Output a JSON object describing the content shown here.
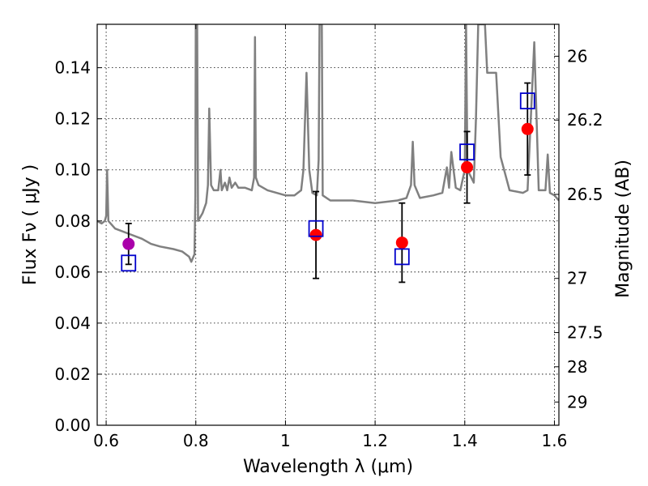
{
  "chart_data": {
    "type": "scatter",
    "title": "",
    "xlabel": "Wavelength  λ (μm)",
    "ylabel": "Flux  Fν  ( μJy )",
    "ylabel_right": "Magnitude (AB)",
    "xlim": [
      0.58,
      1.61
    ],
    "ylim": [
      0.0,
      0.157
    ],
    "grid": true,
    "x_ticks": [
      0.6,
      0.8,
      1.0,
      1.2,
      1.4,
      1.6
    ],
    "x_tick_labels": [
      "0.6",
      "0.8",
      "1",
      "1.2",
      "1.4",
      "1.6"
    ],
    "y_ticks": [
      0.0,
      0.02,
      0.04,
      0.06,
      0.08,
      0.1,
      0.12,
      0.14
    ],
    "y_tick_labels": [
      "0.00",
      "0.02",
      "0.04",
      "0.06",
      "0.08",
      "0.10",
      "0.12",
      "0.14"
    ],
    "mag_ticks": [
      {
        "label": "26",
        "flux": 0.1445
      },
      {
        "label": "26.2",
        "flux": 0.1195
      },
      {
        "label": "26.5",
        "flux": 0.0904
      },
      {
        "label": "27",
        "flux": 0.0575
      },
      {
        "label": "27.5",
        "flux": 0.0363
      },
      {
        "label": "28",
        "flux": 0.0229
      },
      {
        "label": "29",
        "flux": 0.0091
      }
    ],
    "model_spectrum": {
      "color": "#808080",
      "points": [
        [
          0.58,
          0.08
        ],
        [
          0.59,
          0.079
        ],
        [
          0.597,
          0.08
        ],
        [
          0.6,
          0.082
        ],
        [
          0.602,
          0.1
        ],
        [
          0.605,
          0.08
        ],
        [
          0.62,
          0.077
        ],
        [
          0.65,
          0.075
        ],
        [
          0.68,
          0.073
        ],
        [
          0.7,
          0.071
        ],
        [
          0.72,
          0.07
        ],
        [
          0.75,
          0.069
        ],
        [
          0.77,
          0.068
        ],
        [
          0.785,
          0.066
        ],
        [
          0.79,
          0.064
        ],
        [
          0.797,
          0.067
        ],
        [
          0.799,
          0.09
        ],
        [
          0.8,
          0.157
        ],
        [
          0.803,
          0.157
        ],
        [
          0.805,
          0.08
        ],
        [
          0.815,
          0.083
        ],
        [
          0.823,
          0.087
        ],
        [
          0.827,
          0.094
        ],
        [
          0.83,
          0.124
        ],
        [
          0.834,
          0.094
        ],
        [
          0.84,
          0.092
        ],
        [
          0.85,
          0.092
        ],
        [
          0.855,
          0.1
        ],
        [
          0.858,
          0.092
        ],
        [
          0.865,
          0.095
        ],
        [
          0.87,
          0.092
        ],
        [
          0.875,
          0.097
        ],
        [
          0.88,
          0.093
        ],
        [
          0.888,
          0.095
        ],
        [
          0.895,
          0.093
        ],
        [
          0.91,
          0.093
        ],
        [
          0.925,
          0.092
        ],
        [
          0.93,
          0.097
        ],
        [
          0.932,
          0.152
        ],
        [
          0.934,
          0.097
        ],
        [
          0.94,
          0.094
        ],
        [
          0.96,
          0.092
        ],
        [
          0.98,
          0.091
        ],
        [
          1.0,
          0.09
        ],
        [
          1.02,
          0.09
        ],
        [
          1.035,
          0.092
        ],
        [
          1.04,
          0.1
        ],
        [
          1.047,
          0.138
        ],
        [
          1.053,
          0.1
        ],
        [
          1.06,
          0.091
        ],
        [
          1.07,
          0.09
        ],
        [
          1.074,
          0.104
        ],
        [
          1.076,
          0.157
        ],
        [
          1.081,
          0.157
        ],
        [
          1.083,
          0.09
        ],
        [
          1.1,
          0.088
        ],
        [
          1.15,
          0.088
        ],
        [
          1.2,
          0.087
        ],
        [
          1.25,
          0.088
        ],
        [
          1.27,
          0.089
        ],
        [
          1.28,
          0.094
        ],
        [
          1.284,
          0.111
        ],
        [
          1.288,
          0.094
        ],
        [
          1.3,
          0.089
        ],
        [
          1.33,
          0.09
        ],
        [
          1.35,
          0.091
        ],
        [
          1.36,
          0.101
        ],
        [
          1.365,
          0.093
        ],
        [
          1.37,
          0.107
        ],
        [
          1.38,
          0.093
        ],
        [
          1.39,
          0.092
        ],
        [
          1.4,
          0.1
        ],
        [
          1.403,
          0.157
        ],
        [
          1.406,
          0.1
        ],
        [
          1.42,
          0.095
        ],
        [
          1.425,
          0.12
        ],
        [
          1.43,
          0.157
        ],
        [
          1.445,
          0.157
        ],
        [
          1.45,
          0.138
        ],
        [
          1.47,
          0.138
        ],
        [
          1.48,
          0.105
        ],
        [
          1.5,
          0.092
        ],
        [
          1.53,
          0.091
        ],
        [
          1.54,
          0.092
        ],
        [
          1.555,
          0.15
        ],
        [
          1.565,
          0.092
        ],
        [
          1.58,
          0.092
        ],
        [
          1.585,
          0.106
        ],
        [
          1.59,
          0.091
        ],
        [
          1.6,
          0.09
        ],
        [
          1.61,
          0.088
        ]
      ]
    },
    "series": [
      {
        "marker": "circle",
        "color": "#ff0000",
        "points": [
          {
            "x": 1.068,
            "y": 0.0745,
            "err": 0.017
          },
          {
            "x": 1.26,
            "y": 0.0715,
            "err": 0.0155
          },
          {
            "x": 1.405,
            "y": 0.101,
            "err": 0.014
          },
          {
            "x": 1.54,
            "y": 0.116,
            "err": 0.018
          }
        ]
      },
      {
        "marker": "circle",
        "color": "#aa00aa",
        "points": [
          {
            "x": 0.65,
            "y": 0.071,
            "err": 0.008
          }
        ]
      },
      {
        "marker": "square-open",
        "color": "#0000cc",
        "points": [
          {
            "x": 0.65,
            "y": 0.0635
          },
          {
            "x": 1.068,
            "y": 0.077
          },
          {
            "x": 1.26,
            "y": 0.066
          },
          {
            "x": 1.405,
            "y": 0.107
          },
          {
            "x": 1.54,
            "y": 0.127
          }
        ]
      }
    ]
  }
}
